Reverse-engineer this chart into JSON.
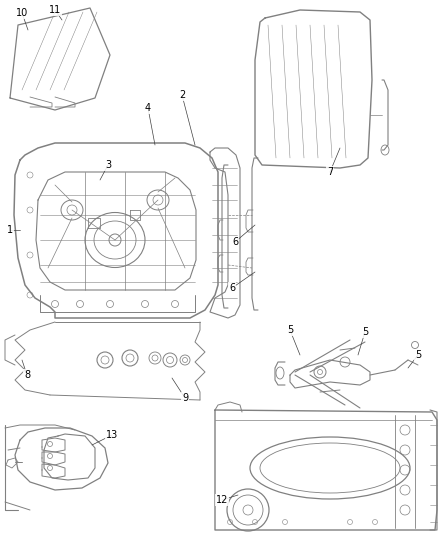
{
  "bg_color": "#ffffff",
  "lc": "#808080",
  "fig_width": 4.38,
  "fig_height": 5.33,
  "dpi": 100
}
